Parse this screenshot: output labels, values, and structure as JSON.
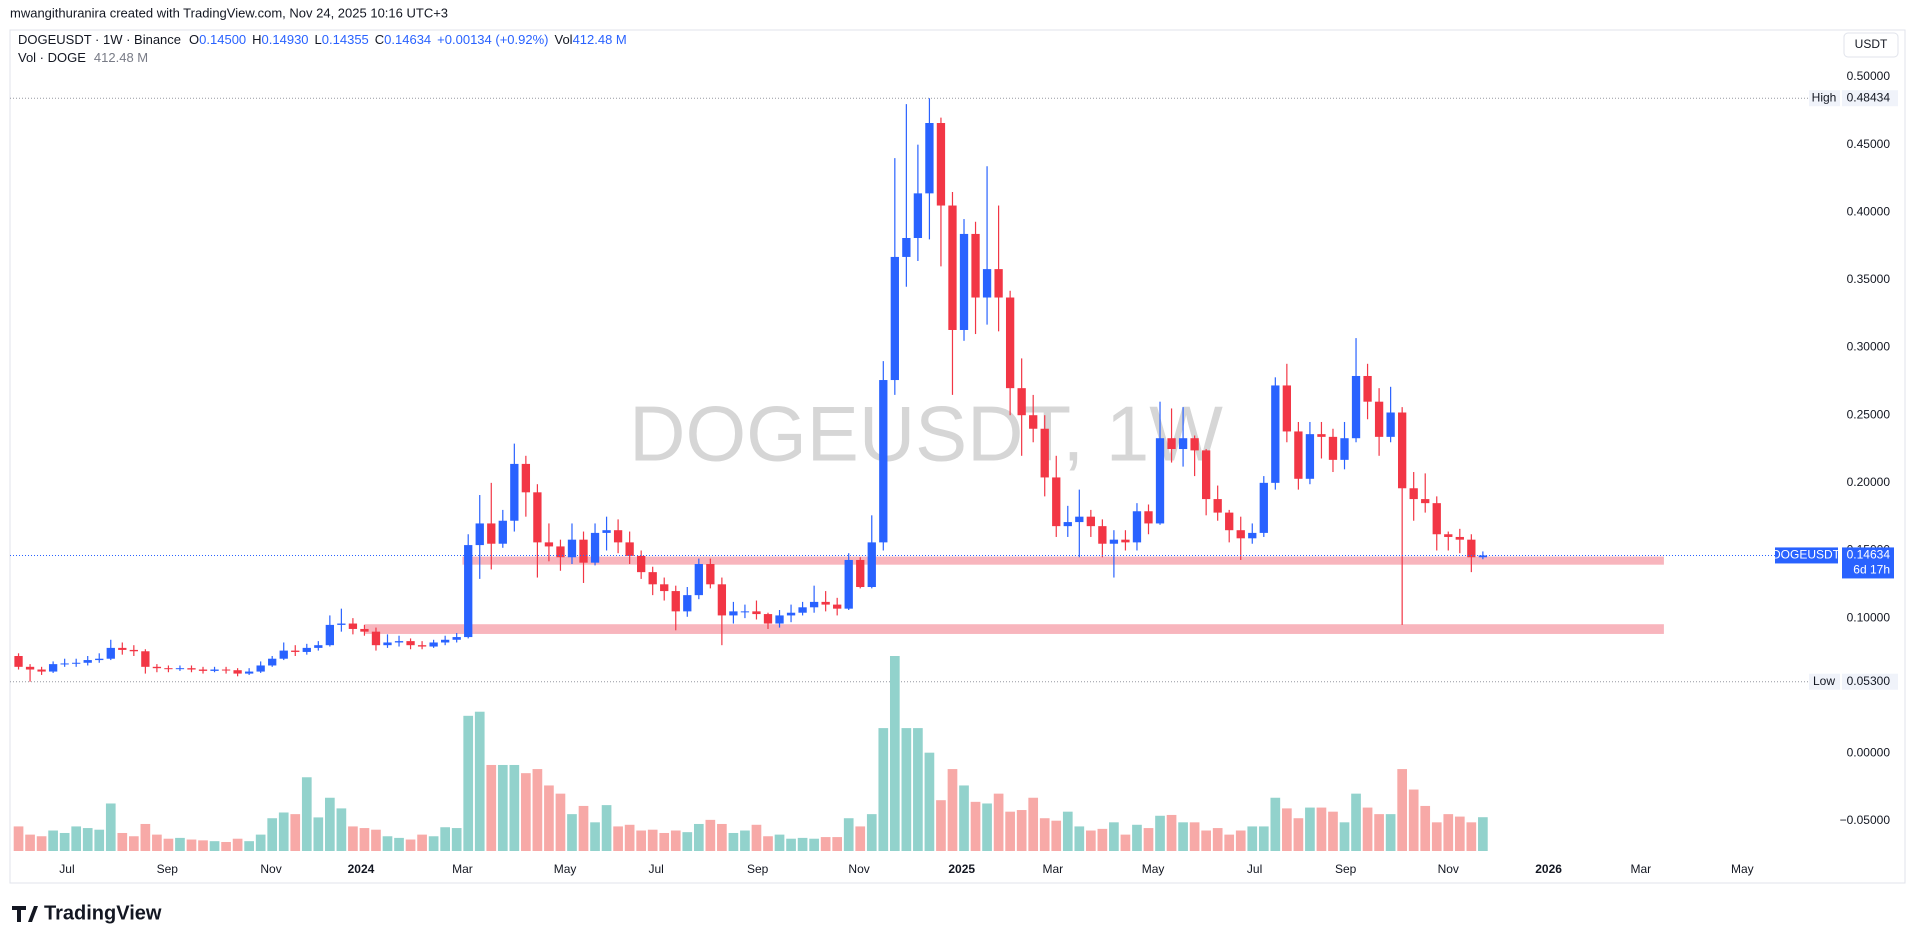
{
  "header": {
    "attribution": "mwangithuranira created with TradingView.com, Nov 24, 2025 10:16 UTC+3",
    "symbol": "DOGEUSDT · 1W · Binance",
    "ohlc": [
      {
        "key": "O",
        "value": "0.14500"
      },
      {
        "key": "H",
        "value": "0.14930"
      },
      {
        "key": "L",
        "value": "0.14355"
      },
      {
        "key": "C",
        "value": "0.14634"
      }
    ],
    "change": "+0.00134 (+0.92%)",
    "volume": {
      "key": "Vol",
      "value": "412.48 M"
    },
    "volume_study": {
      "name": "Vol · DOGE",
      "value": "412.48 M"
    },
    "currency_button": "USDT"
  },
  "watermark": "DOGEUSDT, 1W",
  "logo": "TradingView",
  "chart_data": {
    "type": "candlestick",
    "series": [
      {
        "name": "DOGEUSDT",
        "up_color": "#2962ff",
        "down_color": "#f23645",
        "open": [
          0.072,
          0.064,
          0.062,
          0.0605,
          0.066,
          0.0665,
          0.067,
          0.069,
          0.07,
          0.078,
          0.0765,
          0.0755,
          0.064,
          0.063,
          0.0625,
          0.063,
          0.062,
          0.061,
          0.062,
          0.0615,
          0.059,
          0.0605,
          0.065,
          0.07,
          0.076,
          0.075,
          0.078,
          0.08,
          0.095,
          0.096,
          0.092,
          0.09,
          0.08,
          0.082,
          0.083,
          0.08,
          0.079,
          0.082,
          0.084,
          0.086,
          0.154,
          0.17,
          0.155,
          0.172,
          0.214,
          0.193,
          0.156,
          0.153,
          0.145,
          0.158,
          0.141,
          0.163,
          0.165,
          0.156,
          0.146,
          0.134,
          0.125,
          0.12,
          0.105,
          0.117,
          0.14,
          0.125,
          0.102,
          0.105,
          0.105,
          0.103,
          0.096,
          0.102,
          0.104,
          0.108,
          0.112,
          0.11,
          0.107,
          0.143,
          0.123,
          0.156,
          0.276,
          0.367,
          0.381,
          0.414,
          0.466,
          0.405,
          0.313,
          0.384,
          0.337,
          0.358,
          0.337,
          0.27,
          0.25,
          0.24,
          0.204,
          0.168,
          0.171,
          0.175,
          0.168,
          0.155,
          0.158,
          0.156,
          0.179,
          0.17,
          0.233,
          0.225,
          0.233,
          0.224,
          0.188,
          0.178,
          0.165,
          0.159,
          0.163,
          0.2,
          0.272,
          0.238,
          0.203,
          0.236,
          0.234,
          0.217,
          0.233,
          0.279,
          0.26,
          0.234,
          0.252,
          0.196,
          0.188,
          0.185,
          0.162,
          0.16,
          0.158,
          0.145
        ],
        "high": [
          0.074,
          0.066,
          0.064,
          0.068,
          0.07,
          0.07,
          0.072,
          0.074,
          0.084,
          0.082,
          0.08,
          0.077,
          0.066,
          0.065,
          0.065,
          0.065,
          0.064,
          0.064,
          0.064,
          0.063,
          0.063,
          0.068,
          0.072,
          0.082,
          0.08,
          0.081,
          0.083,
          0.102,
          0.107,
          0.1,
          0.095,
          0.093,
          0.088,
          0.087,
          0.085,
          0.083,
          0.084,
          0.087,
          0.089,
          0.162,
          0.191,
          0.2,
          0.18,
          0.229,
          0.22,
          0.199,
          0.17,
          0.158,
          0.17,
          0.164,
          0.17,
          0.175,
          0.173,
          0.164,
          0.15,
          0.138,
          0.13,
          0.124,
          0.123,
          0.144,
          0.144,
          0.13,
          0.112,
          0.11,
          0.113,
          0.104,
          0.106,
          0.11,
          0.112,
          0.124,
          0.12,
          0.115,
          0.148,
          0.145,
          0.176,
          0.29,
          0.44,
          0.48,
          0.45,
          0.48434,
          0.47,
          0.415,
          0.395,
          0.393,
          0.434,
          0.405,
          0.342,
          0.292,
          0.265,
          0.25,
          0.22,
          0.183,
          0.195,
          0.18,
          0.173,
          0.165,
          0.165,
          0.185,
          0.184,
          0.26,
          0.255,
          0.256,
          0.235,
          0.225,
          0.198,
          0.18,
          0.175,
          0.17,
          0.205,
          0.278,
          0.288,
          0.245,
          0.245,
          0.245,
          0.24,
          0.245,
          0.307,
          0.288,
          0.27,
          0.271,
          0.256,
          0.208,
          0.207,
          0.19,
          0.164,
          0.166,
          0.162,
          0.1493
        ],
        "low": [
          0.062,
          0.053,
          0.058,
          0.0595,
          0.064,
          0.064,
          0.065,
          0.067,
          0.069,
          0.073,
          0.072,
          0.059,
          0.06,
          0.06,
          0.061,
          0.06,
          0.059,
          0.06,
          0.059,
          0.057,
          0.058,
          0.0595,
          0.064,
          0.069,
          0.072,
          0.073,
          0.076,
          0.079,
          0.09,
          0.088,
          0.087,
          0.076,
          0.078,
          0.079,
          0.077,
          0.077,
          0.078,
          0.08,
          0.082,
          0.085,
          0.129,
          0.136,
          0.152,
          0.164,
          0.175,
          0.13,
          0.142,
          0.135,
          0.14,
          0.126,
          0.139,
          0.15,
          0.148,
          0.14,
          0.129,
          0.117,
          0.113,
          0.091,
          0.101,
          0.114,
          0.122,
          0.08,
          0.096,
          0.1,
          0.099,
          0.092,
          0.093,
          0.097,
          0.102,
          0.104,
          0.105,
          0.102,
          0.106,
          0.122,
          0.122,
          0.15,
          0.265,
          0.345,
          0.364,
          0.38,
          0.36,
          0.265,
          0.305,
          0.31,
          0.317,
          0.312,
          0.25,
          0.22,
          0.23,
          0.19,
          0.16,
          0.16,
          0.145,
          0.16,
          0.145,
          0.13,
          0.15,
          0.15,
          0.162,
          0.169,
          0.215,
          0.212,
          0.205,
          0.176,
          0.172,
          0.156,
          0.143,
          0.155,
          0.16,
          0.195,
          0.23,
          0.195,
          0.199,
          0.218,
          0.208,
          0.21,
          0.23,
          0.247,
          0.22,
          0.23,
          0.095,
          0.172,
          0.178,
          0.15,
          0.15,
          0.148,
          0.134,
          0.14355
        ],
        "close": [
          0.064,
          0.062,
          0.0605,
          0.066,
          0.0665,
          0.067,
          0.069,
          0.07,
          0.078,
          0.0765,
          0.0755,
          0.064,
          0.063,
          0.0625,
          0.063,
          0.062,
          0.061,
          0.062,
          0.0615,
          0.059,
          0.0605,
          0.065,
          0.07,
          0.076,
          0.075,
          0.078,
          0.08,
          0.095,
          0.096,
          0.092,
          0.09,
          0.08,
          0.082,
          0.083,
          0.08,
          0.079,
          0.082,
          0.084,
          0.086,
          0.154,
          0.17,
          0.155,
          0.172,
          0.214,
          0.193,
          0.156,
          0.153,
          0.145,
          0.158,
          0.141,
          0.163,
          0.165,
          0.156,
          0.146,
          0.134,
          0.125,
          0.12,
          0.105,
          0.117,
          0.14,
          0.125,
          0.102,
          0.105,
          0.105,
          0.103,
          0.096,
          0.102,
          0.104,
          0.108,
          0.112,
          0.11,
          0.107,
          0.143,
          0.123,
          0.156,
          0.276,
          0.367,
          0.381,
          0.414,
          0.466,
          0.405,
          0.313,
          0.384,
          0.337,
          0.358,
          0.337,
          0.27,
          0.25,
          0.24,
          0.204,
          0.168,
          0.171,
          0.175,
          0.168,
          0.155,
          0.158,
          0.156,
          0.179,
          0.17,
          0.233,
          0.225,
          0.233,
          0.224,
          0.188,
          0.178,
          0.165,
          0.159,
          0.163,
          0.2,
          0.272,
          0.238,
          0.203,
          0.236,
          0.234,
          0.217,
          0.233,
          0.279,
          0.26,
          0.234,
          0.252,
          0.196,
          0.188,
          0.185,
          0.162,
          0.16,
          0.158,
          0.145,
          0.14634
        ]
      }
    ],
    "volume": {
      "up_color": "#92d2cc",
      "down_color": "#f7a9a7",
      "values": [
        300,
        200,
        180,
        250,
        220,
        300,
        280,
        260,
        580,
        220,
        180,
        330,
        200,
        150,
        160,
        140,
        130,
        120,
        110,
        150,
        120,
        200,
        400,
        470,
        450,
        900,
        410,
        650,
        520,
        300,
        280,
        260,
        180,
        160,
        140,
        200,
        180,
        290,
        280,
        1650,
        1700,
        1050,
        1050,
        1050,
        950,
        1000,
        800,
        700,
        450,
        550,
        350,
        560,
        300,
        320,
        250,
        260,
        220,
        250,
        230,
        330,
        380,
        330,
        220,
        250,
        320,
        180,
        200,
        150,
        160,
        150,
        170,
        170,
        400,
        300,
        450,
        1500,
        2380,
        1500,
        1500,
        1200,
        620,
        1000,
        800,
        600,
        580,
        700,
        480,
        500,
        650,
        400,
        370,
        480,
        300,
        250,
        270,
        350,
        200,
        320,
        280,
        430,
        440,
        350,
        350,
        250,
        280,
        200,
        250,
        300,
        300,
        650,
        520,
        400,
        530,
        530,
        480,
        350,
        700,
        530,
        450,
        450,
        1000,
        750,
        550,
        350,
        450,
        420,
        350,
        412.48
      ]
    },
    "ylim": [
      -0.0751,
      0.5111
    ],
    "yticks": [
      {
        "value": 0.5,
        "label": "0.50000"
      },
      {
        "value": 0.45,
        "label": "0.45000"
      },
      {
        "value": 0.4,
        "label": "0.40000"
      },
      {
        "value": 0.35,
        "label": "0.35000"
      },
      {
        "value": 0.3,
        "label": "0.30000"
      },
      {
        "value": 0.25,
        "label": "0.25000"
      },
      {
        "value": 0.2,
        "label": "0.20000"
      },
      {
        "value": 0.15,
        "label": "0.15000"
      },
      {
        "value": 0.1,
        "label": "0.10000"
      },
      {
        "value": 0.05,
        "label": "0.05000"
      },
      {
        "value": 0,
        "label": "0.00000"
      },
      {
        "value": -0.05,
        "label": "−0.05000"
      }
    ],
    "xlim": [
      -0.74,
      157.8
    ],
    "xticks": [
      {
        "value": 4.2,
        "label": "Jul"
      },
      {
        "value": 12.9,
        "label": "Sep"
      },
      {
        "value": 21.9,
        "label": "Nov"
      },
      {
        "value": 29.7,
        "label": "2024"
      },
      {
        "value": 38.5,
        "label": "Mar"
      },
      {
        "value": 47.4,
        "label": "May"
      },
      {
        "value": 55.3,
        "label": "Jul"
      },
      {
        "value": 64.1,
        "label": "Sep"
      },
      {
        "value": 72.9,
        "label": "Nov"
      },
      {
        "value": 81.8,
        "label": "2025"
      },
      {
        "value": 89.7,
        "label": "Mar"
      },
      {
        "value": 98.4,
        "label": "May"
      },
      {
        "value": 107.2,
        "label": "Jul"
      },
      {
        "value": 115.1,
        "label": "Sep"
      },
      {
        "value": 124.0,
        "label": "Nov"
      },
      {
        "value": 132.7,
        "label": "2026"
      },
      {
        "value": 140.7,
        "label": "Mar"
      },
      {
        "value": 149.5,
        "label": "May"
      }
    ],
    "grid": false,
    "high_marker": {
      "name": "High",
      "value": 0.48434,
      "label": "0.48434"
    },
    "low_marker": {
      "name": "Low",
      "value": 0.053,
      "label": "0.05300"
    },
    "last_price": {
      "label": "0.14634",
      "countdown": "6d 17h",
      "color": "#2962ff"
    },
    "zones": [
      {
        "low": 0.1395,
        "high": 0.1455,
        "x": [
          38.5,
          142.7
        ],
        "color": "#f7a8b1"
      },
      {
        "low": 0.0883,
        "high": 0.0955,
        "x": [
          30.0,
          142.7
        ],
        "color": "#f7a8b1"
      }
    ]
  }
}
